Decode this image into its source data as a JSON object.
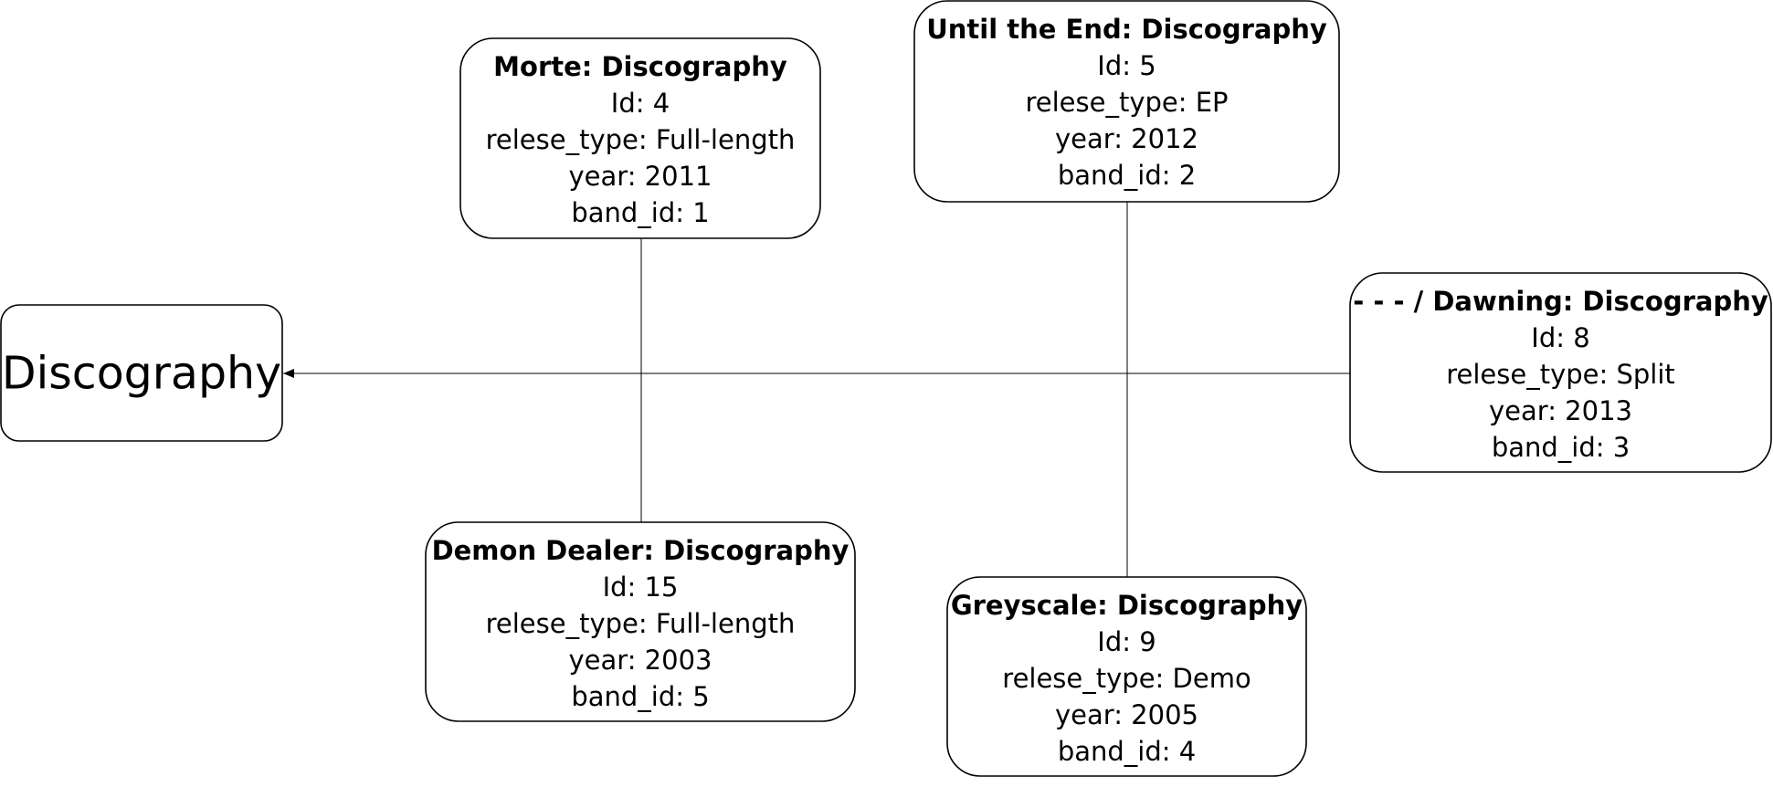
{
  "root": {
    "label": "Discography"
  },
  "records": [
    {
      "key": "morte",
      "title": "Morte: Discography",
      "fields": [
        "Id: 4",
        "relese_type: Full-length",
        "year: 2011",
        "band_id: 1"
      ]
    },
    {
      "key": "until-the-end",
      "title": "Until the End: Discography",
      "fields": [
        "Id: 5",
        "relese_type: EP",
        "year: 2012",
        "band_id: 2"
      ]
    },
    {
      "key": "dawning",
      "title": "- - - / Dawning: Discography",
      "fields": [
        "Id: 8",
        "relese_type: Split",
        "year: 2013",
        "band_id: 3"
      ]
    },
    {
      "key": "demon-dealer",
      "title": "Demon Dealer: Discography",
      "fields": [
        "Id: 15",
        "relese_type: Full-length",
        "year: 2003",
        "band_id: 5"
      ]
    },
    {
      "key": "greyscale",
      "title": "Greyscale: Discography",
      "fields": [
        "Id: 9",
        "relese_type: Demo",
        "year: 2005",
        "band_id: 4"
      ]
    }
  ],
  "edges": [
    {
      "from": "morte",
      "to": "root"
    },
    {
      "from": "until-the-end",
      "to": "root"
    },
    {
      "from": "dawning",
      "to": "root"
    },
    {
      "from": "demon-dealer",
      "to": "root"
    },
    {
      "from": "greyscale",
      "to": "root"
    }
  ]
}
